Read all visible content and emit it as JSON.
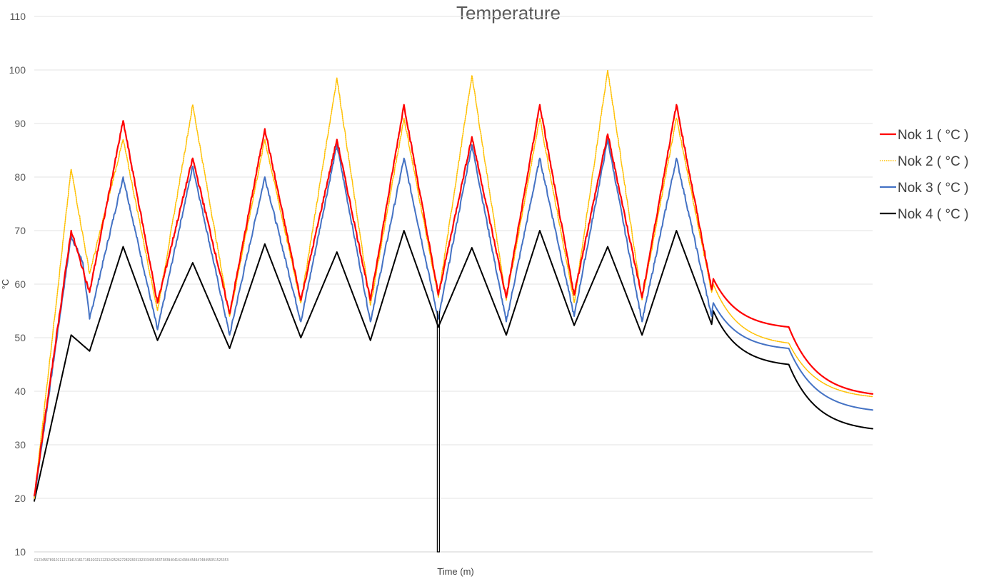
{
  "chart_data": {
    "type": "line",
    "title": "Temperature",
    "xlabel": "Time (m)",
    "ylabel": "°C",
    "ylim": [
      10,
      110
    ],
    "yticks": [
      10,
      20,
      30,
      40,
      50,
      60,
      70,
      80,
      90,
      100,
      110
    ],
    "xlim": [
      0,
      1000
    ],
    "x_tick_text": "0123456789101112131415161718192021222324252627282930313233343536373839404142434445464748495051525353",
    "grid": true,
    "legend_position": "right",
    "series": [
      {
        "name": "Nok 1 ( °C )",
        "color": "#ff0000",
        "style": "solid",
        "points": [
          [
            0,
            20.5
          ],
          [
            44,
            70
          ],
          [
            66,
            58.5
          ],
          [
            106,
            90.5
          ],
          [
            147,
            56.5
          ],
          [
            189,
            83.5
          ],
          [
            233,
            54.5
          ],
          [
            275,
            89
          ],
          [
            318,
            57
          ],
          [
            361,
            87
          ],
          [
            401,
            57
          ],
          [
            441,
            93.5
          ],
          [
            482,
            58
          ],
          [
            522,
            87.5
          ],
          [
            563,
            57.5
          ],
          [
            603,
            93.5
          ],
          [
            644,
            58
          ],
          [
            684,
            88
          ],
          [
            725,
            57.5
          ],
          [
            766,
            93.5
          ],
          [
            808,
            59
          ],
          [
            810,
            61
          ],
          [
            900,
            52
          ],
          [
            1000,
            39.5
          ]
        ]
      },
      {
        "name": "Nok 2  ( °C )",
        "color": "#ffc000",
        "style": "dotted",
        "points": [
          [
            0,
            20
          ],
          [
            44,
            81.5
          ],
          [
            66,
            62
          ],
          [
            106,
            87
          ],
          [
            147,
            55
          ],
          [
            189,
            93.5
          ],
          [
            233,
            54
          ],
          [
            275,
            87
          ],
          [
            318,
            56.5
          ],
          [
            361,
            98.5
          ],
          [
            401,
            56
          ],
          [
            441,
            91
          ],
          [
            482,
            57.5
          ],
          [
            522,
            99
          ],
          [
            563,
            57
          ],
          [
            603,
            91
          ],
          [
            644,
            56.5
          ],
          [
            684,
            100
          ],
          [
            725,
            57
          ],
          [
            766,
            91
          ],
          [
            808,
            58.5
          ],
          [
            810,
            60
          ],
          [
            900,
            49
          ],
          [
            1000,
            39
          ]
        ]
      },
      {
        "name": "Nok 3 ( °C )",
        "color": "#4472c4",
        "style": "solid",
        "points": [
          [
            0,
            20
          ],
          [
            44,
            69
          ],
          [
            58,
            64
          ],
          [
            66,
            53.5
          ],
          [
            106,
            80
          ],
          [
            147,
            51.5
          ],
          [
            189,
            82
          ],
          [
            233,
            50.5
          ],
          [
            275,
            80
          ],
          [
            318,
            53
          ],
          [
            361,
            86
          ],
          [
            401,
            53
          ],
          [
            441,
            83.5
          ],
          [
            482,
            53.5
          ],
          [
            522,
            86
          ],
          [
            563,
            53
          ],
          [
            603,
            83.5
          ],
          [
            644,
            54
          ],
          [
            684,
            87
          ],
          [
            725,
            53
          ],
          [
            766,
            83.5
          ],
          [
            808,
            54
          ],
          [
            810,
            56.5
          ],
          [
            900,
            48
          ],
          [
            1000,
            36.5
          ]
        ]
      },
      {
        "name": "Nok 4  ( °C )",
        "color": "#000000",
        "style": "solid",
        "points": [
          [
            0,
            19.5
          ],
          [
            44,
            50.5
          ],
          [
            66,
            47.5
          ],
          [
            106,
            67
          ],
          [
            147,
            49.5
          ],
          [
            189,
            64
          ],
          [
            233,
            48
          ],
          [
            275,
            67.5
          ],
          [
            318,
            50
          ],
          [
            361,
            66
          ],
          [
            401,
            49.5
          ],
          [
            441,
            70
          ],
          [
            482,
            52
          ],
          [
            522,
            66.8
          ],
          [
            563,
            50.5
          ],
          [
            603,
            70
          ],
          [
            644,
            52.3
          ],
          [
            684,
            67
          ],
          [
            725,
            50.5
          ],
          [
            766,
            70
          ],
          [
            808,
            52.5
          ],
          [
            810,
            55
          ],
          [
            900,
            45
          ],
          [
            1000,
            33
          ]
        ]
      }
    ],
    "annotations": [
      {
        "type": "spike",
        "series": "Nok 4  ( °C )",
        "x": 482,
        "y_from": 55,
        "y_to": 10
      }
    ]
  }
}
